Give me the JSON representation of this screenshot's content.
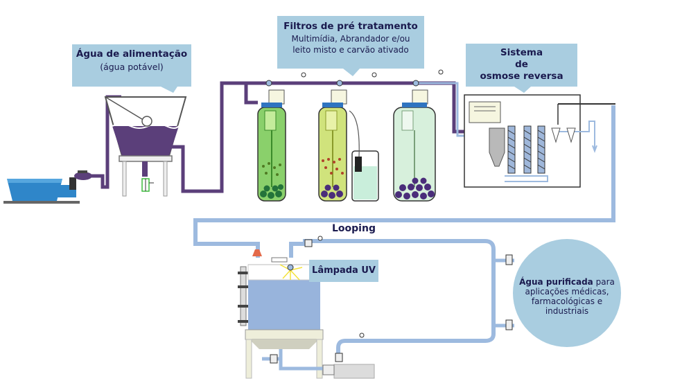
{
  "labels": {
    "alimentacao_title": "Água de alimentação",
    "alimentacao_sub": "(água potável)",
    "filtros_title": "Filtros de pré tratamento",
    "filtros_sub1": "Multimídia, Abrandador e/ou",
    "filtros_sub2": "leito misto e carvão ativado",
    "osmose_l1": "Sistema",
    "osmose_l2": "de",
    "osmose_l3": "osmose reversa",
    "looping": "Looping",
    "lampada": "Lâmpada UV",
    "purificada_bold": "Água purificada",
    "purificada_rest1": "para",
    "purificada_rest2": "aplicações médicas,",
    "purificada_rest3": "farmacológicas e",
    "purificada_rest4": "industriais"
  },
  "colors": {
    "callout_bg": "#a9cde0",
    "text_dark": "#1a1a4e",
    "feed_pipe": "#5b3f7a",
    "treated_pipe": "#9dbadf",
    "tank_green": "#c8ec8f",
    "tank_blue": "#98b4dc",
    "circle_fill": "#a9cde0"
  }
}
